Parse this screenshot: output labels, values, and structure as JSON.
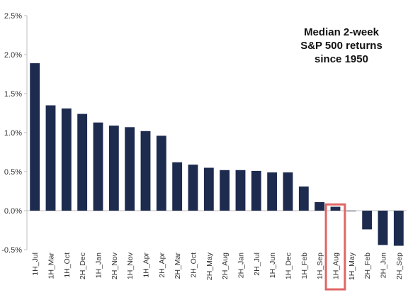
{
  "chart_data": {
    "type": "bar",
    "title_lines": [
      "Median 2-week",
      "S&P 500 returns",
      "since 1950"
    ],
    "categories": [
      "1H_Jul",
      "1H_Mar",
      "1H_Oct",
      "2H_Dec",
      "1H_Jan",
      "2H_Nov",
      "1H_Nov",
      "1H_Apr",
      "2H_Apr",
      "2H_Mar",
      "2H_Oct",
      "2H_May",
      "2H_Aug",
      "2H_Jan",
      "2H_Jul",
      "1H_Jun",
      "1H_Dec",
      "1H_Feb",
      "1H_Sep",
      "1H_Aug",
      "1H_May",
      "2H_Feb",
      "2H_Jun",
      "2H_Sep"
    ],
    "values": [
      1.89,
      1.35,
      1.31,
      1.24,
      1.13,
      1.09,
      1.07,
      1.02,
      0.96,
      0.62,
      0.59,
      0.55,
      0.52,
      0.52,
      0.51,
      0.49,
      0.49,
      0.31,
      0.11,
      0.05,
      0.0,
      -0.24,
      -0.44,
      -0.45
    ],
    "ylim": [
      -0.5,
      2.5
    ],
    "yticks": [
      "2.5%",
      "2.0%",
      "1.5%",
      "1.0%",
      "0.5%",
      "0.0%",
      "-0.5%"
    ],
    "ytick_values": [
      2.5,
      2.0,
      1.5,
      1.0,
      0.5,
      0.0,
      -0.5
    ],
    "highlight_category": "1H_Aug",
    "colors": {
      "bar": "#1d2b4f",
      "highlight_box": "#e06666",
      "axis": "#bfbfbf"
    },
    "xlabel": "",
    "ylabel": "",
    "grid": false,
    "legend": "none"
  }
}
